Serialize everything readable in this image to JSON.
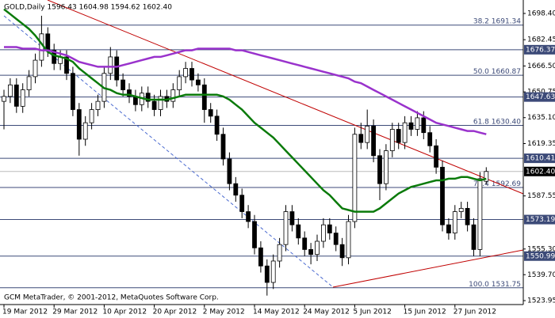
{
  "chart_data": {
    "type": "candlestick",
    "title": "GOLD,Daily 1596.43 1604.98 1594.62 1602.40",
    "footer": "GCM MetaTrader, © 2001-2012, MetaQuotes Software Corp.",
    "ylim": [
      1521.56,
      1706.57
    ],
    "yticks": [
      {
        "value": 1698.4,
        "label": "1698.40"
      },
      1682.45,
      {
        "value": 1666.5,
        "label": "1666.50"
      },
      1650.75,
      {
        "value": 1635.1,
        "label": "1635.10"
      },
      1619.35,
      1587.55,
      {
        "value": 1555.3,
        "label": "1555.30"
      },
      {
        "value": 1539.7,
        "label": "1539.70"
      },
      1523.95
    ],
    "xticks": [
      {
        "value": 0,
        "label": "19 Mar 2012"
      },
      {
        "value": 8,
        "label": "29 Mar 2012"
      },
      {
        "value": 16,
        "label": "10 Apr 2012"
      },
      {
        "value": 24,
        "label": "20 Apr 2012"
      },
      {
        "value": 32,
        "label": "2 May 2012"
      },
      {
        "value": 40,
        "label": "14 May 2012"
      },
      {
        "value": 48,
        "label": "24 May 2012"
      },
      {
        "value": 56,
        "label": "5 Jun 2012"
      },
      {
        "value": 64,
        "label": "15 Jun 2012"
      },
      {
        "value": 72,
        "label": "27 Jun 2012"
      }
    ],
    "open": [
      1645,
      1648,
      1655,
      1642,
      1652,
      1660,
      1670,
      1686,
      1676,
      1668,
      1672,
      1662,
      1640,
      1622,
      1632,
      1640,
      1645,
      1662,
      1672,
      1658,
      1652,
      1648,
      1643,
      1650,
      1645,
      1640,
      1648,
      1645,
      1652,
      1660,
      1665,
      1658,
      1655,
      1640,
      1636,
      1625,
      1610,
      1595,
      1588,
      1578,
      1572,
      1556,
      1545,
      1535,
      1548,
      1558,
      1578,
      1570,
      1562,
      1555,
      1552,
      1560,
      1570,
      1565,
      1558,
      1550,
      1572,
      1625,
      1620,
      1630,
      1612,
      1595,
      1615,
      1628,
      1620,
      1632,
      1628,
      1635,
      1626,
      1618,
      1605,
      1570,
      1565,
      1578,
      1580,
      1570,
      1555,
      1596.43
    ],
    "high": [
      1652,
      1659,
      1659,
      1656,
      1664,
      1674,
      1697,
      1690,
      1680,
      1676,
      1676,
      1666,
      1644,
      1636,
      1644,
      1649,
      1666,
      1678,
      1676,
      1662,
      1656,
      1652,
      1654,
      1654,
      1649,
      1652,
      1652,
      1656,
      1664,
      1669,
      1669,
      1662,
      1659,
      1644,
      1640,
      1629,
      1614,
      1599,
      1592,
      1582,
      1576,
      1560,
      1549,
      1552,
      1562,
      1582,
      1582,
      1574,
      1566,
      1559,
      1564,
      1574,
      1574,
      1569,
      1562,
      1576,
      1629,
      1632,
      1640,
      1634,
      1616,
      1619,
      1632,
      1632,
      1636,
      1636,
      1639,
      1639,
      1630,
      1622,
      1609,
      1574,
      1582,
      1584,
      1584,
      1574,
      1602,
      1604.98
    ],
    "low": [
      1628,
      1644,
      1638,
      1638,
      1648,
      1656,
      1666,
      1672,
      1664,
      1664,
      1658,
      1636,
      1612,
      1618,
      1628,
      1636,
      1641,
      1658,
      1654,
      1648,
      1644,
      1639,
      1639,
      1641,
      1636,
      1636,
      1641,
      1641,
      1648,
      1656,
      1654,
      1651,
      1632,
      1632,
      1621,
      1606,
      1591,
      1584,
      1574,
      1568,
      1552,
      1541,
      1527,
      1531,
      1544,
      1554,
      1566,
      1558,
      1551,
      1546,
      1548,
      1556,
      1561,
      1554,
      1545,
      1546,
      1568,
      1616,
      1616,
      1608,
      1585,
      1591,
      1611,
      1616,
      1616,
      1624,
      1624,
      1622,
      1614,
      1601,
      1566,
      1561,
      1561,
      1574,
      1566,
      1551,
      1551,
      1594.62
    ],
    "close": [
      1648,
      1655,
      1642,
      1652,
      1660,
      1670,
      1686,
      1676,
      1668,
      1672,
      1662,
      1640,
      1622,
      1632,
      1640,
      1645,
      1662,
      1672,
      1658,
      1652,
      1648,
      1643,
      1650,
      1645,
      1640,
      1648,
      1645,
      1652,
      1660,
      1665,
      1658,
      1655,
      1640,
      1636,
      1625,
      1610,
      1595,
      1588,
      1578,
      1572,
      1556,
      1545,
      1535,
      1548,
      1558,
      1578,
      1570,
      1562,
      1555,
      1552,
      1560,
      1570,
      1565,
      1558,
      1550,
      1572,
      1625,
      1620,
      1630,
      1612,
      1595,
      1615,
      1628,
      1620,
      1632,
      1628,
      1635,
      1626,
      1618,
      1605,
      1570,
      1565,
      1578,
      1580,
      1570,
      1555,
      1598,
      1602.4
    ],
    "moving_averages": [
      {
        "color": "#0a7a0a",
        "values": [
          1701,
          1698,
          1695,
          1692,
          1689,
          1685,
          1680,
          1675,
          1673,
          1672,
          1671,
          1669,
          1665,
          1662,
          1659,
          1656,
          1653,
          1652,
          1650,
          1649,
          1649,
          1648,
          1647,
          1646,
          1646,
          1646,
          1646,
          1647,
          1648,
          1649,
          1649,
          1649,
          1649,
          1649,
          1649,
          1648,
          1646,
          1643,
          1640,
          1636,
          1632,
          1629,
          1626,
          1623,
          1619,
          1615,
          1611,
          1607,
          1603,
          1599,
          1595,
          1591,
          1588,
          1584,
          1580,
          1579,
          1578,
          1578,
          1578,
          1578,
          1580,
          1583,
          1586,
          1589,
          1591,
          1593,
          1594,
          1595,
          1596,
          1597,
          1597,
          1598,
          1598,
          1599,
          1599,
          1598,
          1597,
          1598
        ]
      },
      {
        "color": "#9932cc",
        "values": [
          1678,
          1678,
          1678,
          1677,
          1677,
          1677,
          1676,
          1676,
          1675,
          1674,
          1673,
          1671,
          1669,
          1668,
          1667,
          1666,
          1666,
          1666,
          1666,
          1667,
          1668,
          1669,
          1670,
          1671,
          1672,
          1672,
          1673,
          1674,
          1675,
          1676,
          1676,
          1677,
          1677,
          1677,
          1677,
          1677,
          1677,
          1676,
          1676,
          1675,
          1674,
          1673,
          1672,
          1671,
          1670,
          1669,
          1668,
          1667,
          1666,
          1665,
          1664,
          1663,
          1662,
          1661,
          1660,
          1659,
          1657,
          1656,
          1654,
          1652,
          1650,
          1648,
          1646,
          1644,
          1642,
          1640,
          1638,
          1636,
          1634,
          1632,
          1631,
          1630,
          1629,
          1628,
          1627,
          1627,
          1626,
          1625
        ]
      }
    ],
    "levels": [
      {
        "value": 1676.37,
        "label": "1676.37"
      },
      {
        "value": 1647.63,
        "label": "1647.63"
      },
      {
        "value": 1610.41,
        "label": "1610.41"
      },
      {
        "value": 1573.19,
        "label": "1573.19"
      },
      {
        "value": 1550.99,
        "label": "1550.99"
      }
    ],
    "current": {
      "value": 1602.4,
      "label": "1602.40"
    },
    "fibonacci": [
      {
        "ratio": "38.2",
        "value": 1691.34,
        "label": "1691.34"
      },
      {
        "ratio": "50.0",
        "value": 1660.87,
        "label": "1660.87"
      },
      {
        "ratio": "61.8",
        "value": 1630.4,
        "label": "1630.40"
      },
      {
        "ratio": "76.4",
        "value": 1592.69,
        "label": "1592.69"
      },
      {
        "ratio": "100.0",
        "value": 1531.75,
        "label": "1531.75"
      }
    ]
  }
}
